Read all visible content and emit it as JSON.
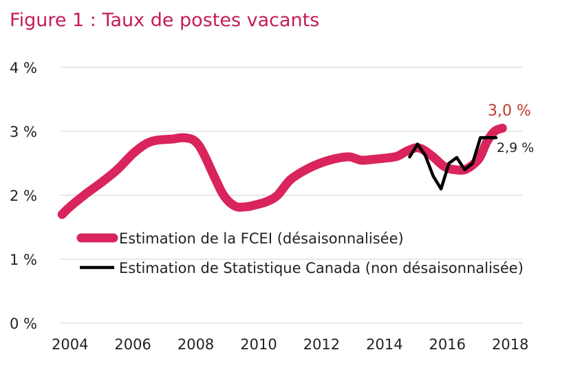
{
  "title": "Figure 1 : Taux de postes vacants",
  "chart_data": {
    "type": "line",
    "title": "Figure 1 : Taux de postes vacants",
    "xlabel": "",
    "ylabel": "",
    "xlim": [
      2003.7,
      2018.4
    ],
    "ylim": [
      0,
      4
    ],
    "y_ticks": [
      "0 %",
      "1 %",
      "2 %",
      "3 %",
      "4 %"
    ],
    "y_tick_values": [
      0,
      1,
      2,
      3,
      4
    ],
    "x_ticks": [
      "2004",
      "2006",
      "2008",
      "2010",
      "2012",
      "2014",
      "2016",
      "2018"
    ],
    "x_tick_values": [
      2004,
      2006,
      2008,
      2010,
      2012,
      2014,
      2016,
      2018
    ],
    "grid": "horizontal",
    "legend_position": "center-left",
    "series": [
      {
        "name": "Estimation de la FCEI (désaisonnalisée)",
        "color": "#d9245c",
        "end_label": "3,0 %",
        "points": [
          [
            2003.75,
            1.7
          ],
          [
            2004.0,
            1.82
          ],
          [
            2004.5,
            2.02
          ],
          [
            2005.0,
            2.2
          ],
          [
            2005.5,
            2.4
          ],
          [
            2006.0,
            2.65
          ],
          [
            2006.4,
            2.8
          ],
          [
            2006.75,
            2.86
          ],
          [
            2007.25,
            2.88
          ],
          [
            2007.6,
            2.9
          ],
          [
            2007.9,
            2.87
          ],
          [
            2008.1,
            2.78
          ],
          [
            2008.3,
            2.6
          ],
          [
            2008.6,
            2.28
          ],
          [
            2008.9,
            1.99
          ],
          [
            2009.25,
            1.83
          ],
          [
            2009.6,
            1.82
          ],
          [
            2009.9,
            1.85
          ],
          [
            2010.25,
            1.9
          ],
          [
            2010.6,
            2.0
          ],
          [
            2011.0,
            2.24
          ],
          [
            2011.5,
            2.4
          ],
          [
            2012.0,
            2.51
          ],
          [
            2012.5,
            2.58
          ],
          [
            2012.9,
            2.6
          ],
          [
            2013.25,
            2.55
          ],
          [
            2013.6,
            2.56
          ],
          [
            2014.0,
            2.58
          ],
          [
            2014.4,
            2.61
          ],
          [
            2014.75,
            2.7
          ],
          [
            2015.1,
            2.74
          ],
          [
            2015.5,
            2.62
          ],
          [
            2015.9,
            2.45
          ],
          [
            2016.25,
            2.4
          ],
          [
            2016.6,
            2.41
          ],
          [
            2017.0,
            2.57
          ],
          [
            2017.25,
            2.83
          ],
          [
            2017.5,
            3.0
          ],
          [
            2017.75,
            3.05
          ]
        ]
      },
      {
        "name": "Estimation de Statistique Canada (non désaisonnalisée)",
        "color": "#000000",
        "end_label": "2,9 %",
        "points": [
          [
            2014.8,
            2.6
          ],
          [
            2015.05,
            2.8
          ],
          [
            2015.3,
            2.62
          ],
          [
            2015.55,
            2.3
          ],
          [
            2015.8,
            2.1
          ],
          [
            2016.05,
            2.5
          ],
          [
            2016.3,
            2.59
          ],
          [
            2016.55,
            2.4
          ],
          [
            2016.8,
            2.5
          ],
          [
            2017.05,
            2.9
          ],
          [
            2017.3,
            2.9
          ],
          [
            2017.55,
            2.9
          ]
        ]
      }
    ]
  }
}
